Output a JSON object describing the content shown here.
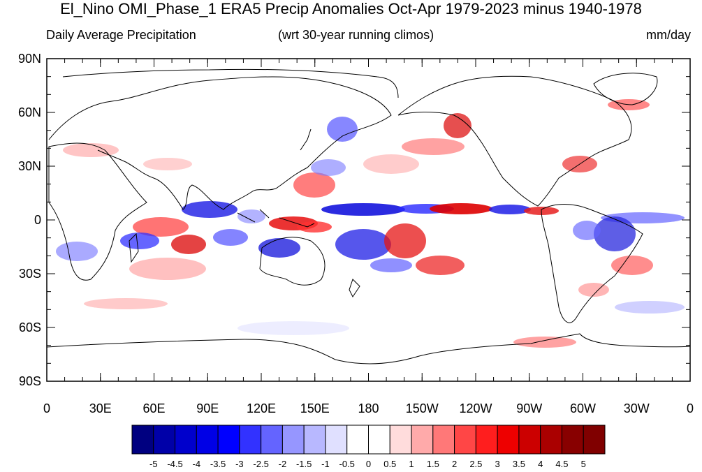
{
  "title": "El_Nino OMI_Phase_1 ERA5 Precip Anomalies Oct-Apr 1979-2023 minus 1940-1978",
  "subtitle_left": "Daily Average Precipitation",
  "subtitle_center": "(wrt 30-year running climos)",
  "subtitle_right": "mm/day",
  "y_ticks": [
    "90N",
    "60N",
    "30N",
    "0",
    "30S",
    "60S",
    "90S"
  ],
  "x_ticks": [
    "0",
    "30E",
    "60E",
    "90E",
    "120E",
    "150E",
    "180",
    "150W",
    "120W",
    "90W",
    "60W",
    "30W",
    "0"
  ],
  "colorbar": {
    "labels": [
      "-5",
      "-4.5",
      "-4",
      "-3.5",
      "-3",
      "-2.5",
      "-2",
      "-1.5",
      "-1",
      "-0.5",
      "0",
      "0.5",
      "1",
      "1.5",
      "2",
      "2.5",
      "3",
      "3.5",
      "4",
      "4.5",
      "5"
    ],
    "colors": [
      "#000080",
      "#0000a8",
      "#0000cc",
      "#0000e6",
      "#0000ff",
      "#3232ff",
      "#6464ff",
      "#9696ff",
      "#b8b8ff",
      "#e0e0ff",
      "#ffffff",
      "#ffffff",
      "#ffdcdc",
      "#ffaaaa",
      "#ff7878",
      "#ff4646",
      "#ff1e1e",
      "#ee0000",
      "#cc0000",
      "#aa0000",
      "#880000",
      "#800000"
    ]
  }
}
